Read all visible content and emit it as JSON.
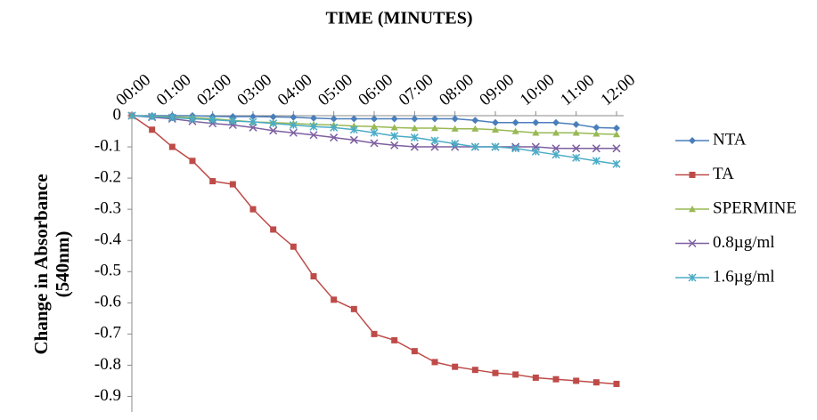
{
  "chart_data": {
    "type": "line",
    "title": "TIME (MINUTES)",
    "ylabel": [
      "Change in Absorbance",
      "(540nm)"
    ],
    "categories": [
      "00:00",
      null,
      "01:00",
      null,
      "02:00",
      null,
      "03:00",
      null,
      "04:00",
      null,
      "05:00",
      null,
      "06:00",
      null,
      "07:00",
      null,
      "08:00",
      null,
      "09:00",
      null,
      "10:00",
      null,
      "11:00",
      null,
      "12:00"
    ],
    "ylim": [
      -0.95,
      0
    ],
    "yticks": [
      0,
      -0.1,
      -0.2,
      -0.3,
      -0.4,
      -0.5,
      -0.6,
      -0.7,
      -0.8,
      -0.9
    ],
    "legend": "right",
    "series": [
      {
        "name": "NTA",
        "color": "#4a7ebb",
        "marker": "diamond",
        "values": [
          0,
          0,
          0,
          0,
          -0.002,
          -0.003,
          -0.003,
          -0.004,
          -0.005,
          -0.008,
          -0.01,
          -0.01,
          -0.01,
          -0.01,
          -0.01,
          -0.01,
          -0.01,
          -0.015,
          -0.022,
          -0.022,
          -0.022,
          -0.022,
          -0.028,
          -0.038,
          -0.04
        ]
      },
      {
        "name": "TA",
        "color": "#be4b48",
        "marker": "square",
        "values": [
          0,
          -0.045,
          -0.1,
          -0.145,
          -0.21,
          -0.22,
          -0.3,
          -0.365,
          -0.42,
          -0.515,
          -0.59,
          -0.62,
          -0.7,
          -0.72,
          -0.755,
          -0.79,
          -0.805,
          -0.815,
          -0.825,
          -0.83,
          -0.84,
          -0.845,
          -0.85,
          -0.855,
          -0.86
        ]
      },
      {
        "name": "SPERMINE",
        "color": "#98b954",
        "marker": "triangle",
        "values": [
          0,
          -0.002,
          -0.004,
          -0.006,
          -0.01,
          -0.015,
          -0.02,
          -0.022,
          -0.025,
          -0.028,
          -0.03,
          -0.033,
          -0.035,
          -0.038,
          -0.04,
          -0.04,
          -0.042,
          -0.042,
          -0.045,
          -0.05,
          -0.055,
          -0.055,
          -0.055,
          -0.058,
          -0.06
        ]
      },
      {
        "name": "0.8µg/ml",
        "color": "#7d5fa0",
        "marker": "x",
        "values": [
          0,
          -0.005,
          -0.01,
          -0.018,
          -0.025,
          -0.03,
          -0.038,
          -0.048,
          -0.055,
          -0.062,
          -0.07,
          -0.078,
          -0.088,
          -0.095,
          -0.1,
          -0.1,
          -0.1,
          -0.1,
          -0.1,
          -0.1,
          -0.1,
          -0.105,
          -0.105,
          -0.105,
          -0.105
        ]
      },
      {
        "name": "1.6µg/ml",
        "color": "#4bacc6",
        "marker": "star",
        "values": [
          0,
          -0.003,
          -0.006,
          -0.01,
          -0.013,
          -0.017,
          -0.02,
          -0.025,
          -0.03,
          -0.035,
          -0.038,
          -0.045,
          -0.055,
          -0.065,
          -0.07,
          -0.08,
          -0.09,
          -0.1,
          -0.1,
          -0.105,
          -0.115,
          -0.125,
          -0.135,
          -0.145,
          -0.155
        ]
      }
    ]
  }
}
